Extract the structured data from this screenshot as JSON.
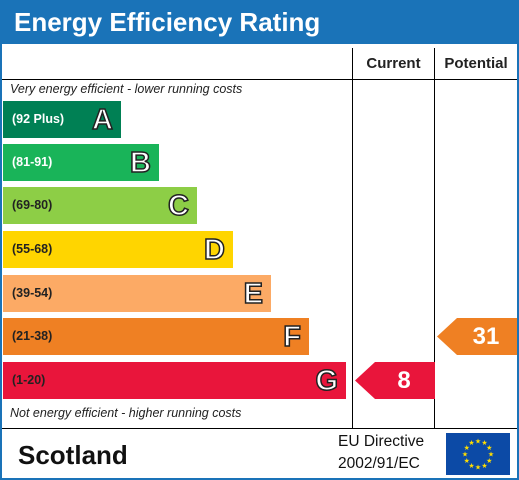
{
  "title": "Energy Efficiency Rating",
  "columns": {
    "current": "Current",
    "potential": "Potential"
  },
  "notes": {
    "top": "Very energy efficient - lower running costs",
    "bottom": "Not energy efficient - higher running costs"
  },
  "bands": [
    {
      "letter": "A",
      "range": "(92 Plus)",
      "color": "#008054",
      "text_color": "#ffffff"
    },
    {
      "letter": "B",
      "range": "(81-91)",
      "color": "#19b459",
      "text_color": "#ffffff"
    },
    {
      "letter": "C",
      "range": "(69-80)",
      "color": "#8dce46",
      "text_color": "#222222"
    },
    {
      "letter": "D",
      "range": "(55-68)",
      "color": "#ffd500",
      "text_color": "#222222"
    },
    {
      "letter": "E",
      "range": "(39-54)",
      "color": "#fcaa65",
      "text_color": "#222222"
    },
    {
      "letter": "F",
      "range": "(21-38)",
      "color": "#ef8023",
      "text_color": "#222222"
    },
    {
      "letter": "G",
      "range": "(1-20)",
      "color": "#e9153b",
      "text_color": "#222222"
    }
  ],
  "ratings": {
    "current": {
      "value": "8",
      "band": "G",
      "color": "#e9153b"
    },
    "potential": {
      "value": "31",
      "band": "F",
      "color": "#ef8023"
    }
  },
  "footer": {
    "region": "Scotland",
    "directive_line1": "EU Directive",
    "directive_line2": "2002/91/EC"
  },
  "colors": {
    "accent": "#1a73b8",
    "eu_flag": "#0c4aa6",
    "eu_stars": "#ffdd00"
  },
  "icons": {
    "flag": "eu-flag-icon"
  }
}
